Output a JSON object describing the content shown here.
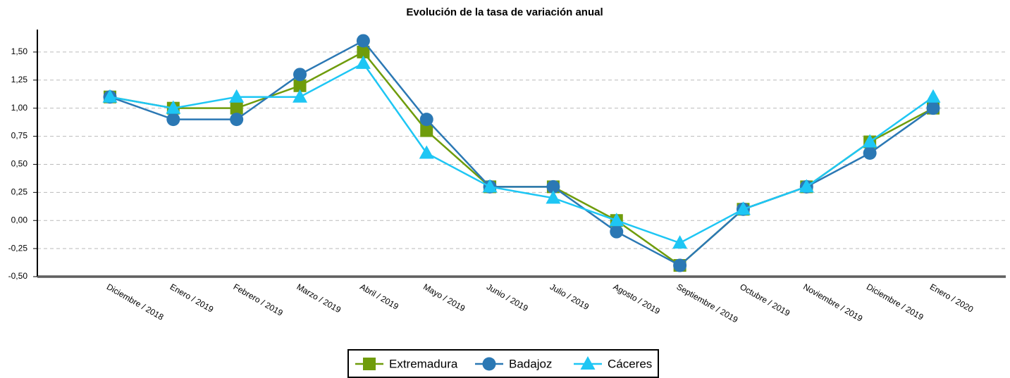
{
  "chart_data": {
    "type": "line",
    "title": "Evolución de la tasa de variación anual",
    "categories": [
      "Diciembre / 2018",
      "Enero / 2019",
      "Febrero / 2019",
      "Marzo / 2019",
      "Abril / 2019",
      "Mayo / 2019",
      "Junio / 2019",
      "Julio / 2019",
      "Agosto / 2019",
      "Septiembre / 2019",
      "Octubre / 2019",
      "Noviembre / 2019",
      "Diciembre / 2019",
      "Enero / 2020"
    ],
    "series": [
      {
        "name": "Extremadura",
        "color": "#6f9c0c",
        "marker": "square",
        "values": [
          1.1,
          1.0,
          1.0,
          1.2,
          1.5,
          0.8,
          0.3,
          0.3,
          0.0,
          -0.4,
          0.1,
          0.3,
          0.7,
          1.0
        ]
      },
      {
        "name": "Badajoz",
        "color": "#2b78b4",
        "marker": "circle",
        "values": [
          1.1,
          0.9,
          0.9,
          1.3,
          1.6,
          0.9,
          0.3,
          0.3,
          -0.1,
          -0.4,
          0.1,
          0.3,
          0.6,
          1.0
        ]
      },
      {
        "name": "Cáceres",
        "color": "#1ec6f4",
        "marker": "triangle",
        "values": [
          1.1,
          1.0,
          1.1,
          1.1,
          1.4,
          0.6,
          0.3,
          0.2,
          0.0,
          -0.2,
          0.1,
          0.3,
          0.7,
          1.1
        ]
      }
    ],
    "ylim": [
      -0.5,
      1.7
    ],
    "yticks": [
      {
        "value": -0.5,
        "label": "-0,50"
      },
      {
        "value": -0.25,
        "label": "-0,25"
      },
      {
        "value": 0,
        "label": "0,00"
      },
      {
        "value": 0.25,
        "label": "0,25"
      },
      {
        "value": 0.5,
        "label": "0,50"
      },
      {
        "value": 0.75,
        "label": "0,75"
      },
      {
        "value": 1,
        "label": "1,00"
      },
      {
        "value": 1.25,
        "label": "1,25"
      },
      {
        "value": 1.5,
        "label": "1,50"
      }
    ],
    "grid": true,
    "legend": "bottom"
  }
}
